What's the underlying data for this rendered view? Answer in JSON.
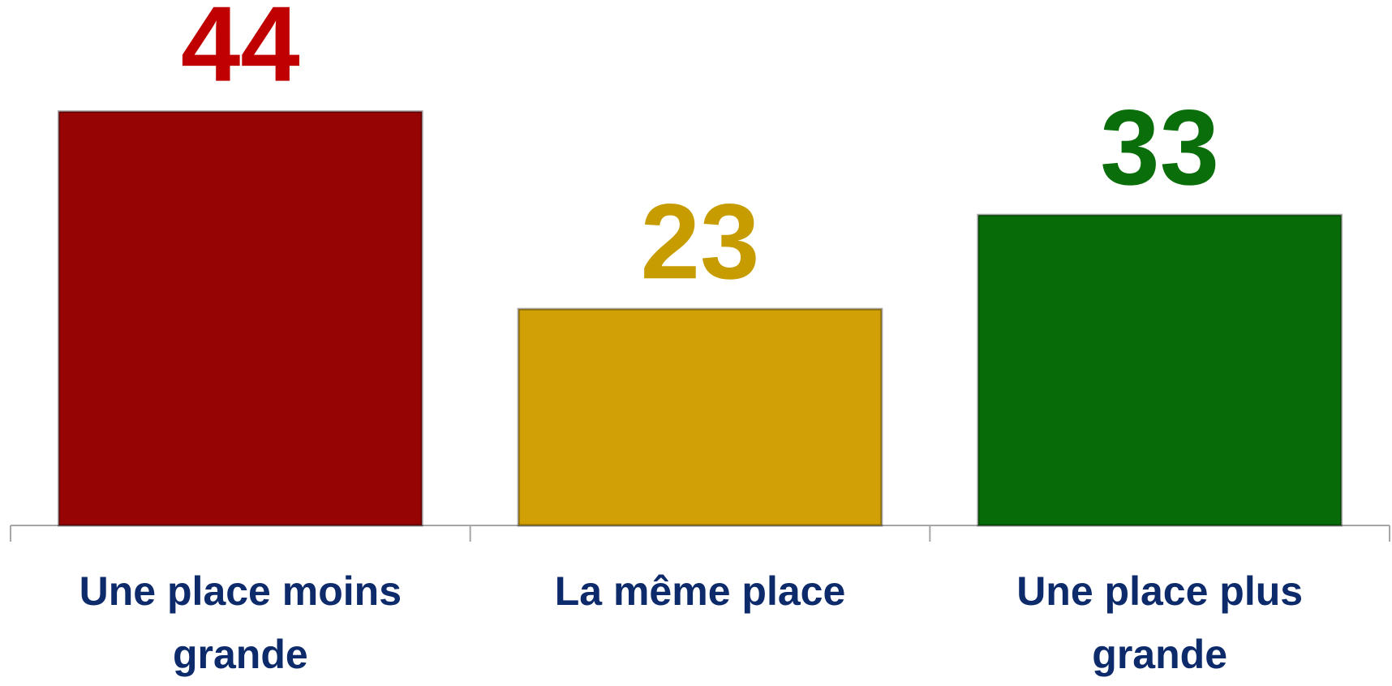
{
  "chart_data": {
    "type": "bar",
    "categories": [
      "Une place moins grande",
      "La même place",
      "Une place plus grande"
    ],
    "values": [
      44,
      23,
      33
    ],
    "colors": [
      "#960404",
      "#d0a005",
      "#076b07"
    ],
    "label_colors": [
      "#c00000",
      "#c69c00",
      "#0a6e0a"
    ],
    "ylim": [
      0,
      55
    ]
  }
}
